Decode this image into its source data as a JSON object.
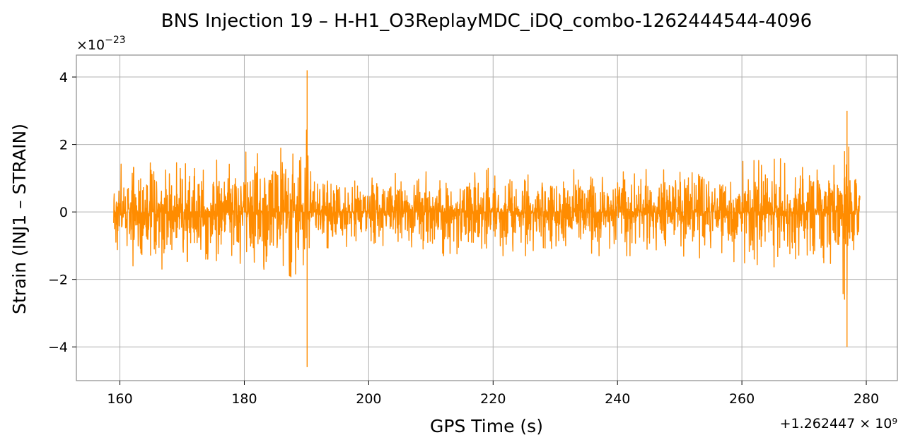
{
  "chart_data": {
    "type": "line",
    "title": "BNS Injection 19 – H-H1_O3ReplayMDC_iDQ_combo-1262444544-4096",
    "xlabel": "GPS Time (s)",
    "ylabel": "Strain (INJ1 – STRAIN)",
    "x_offset_text": "+1.262447 × 10⁹",
    "y_scale_text_base": "×10",
    "y_scale_text_exp": "−23",
    "xlim": [
      153,
      285
    ],
    "ylim": [
      -5,
      4.65
    ],
    "x_ticks": [
      160,
      180,
      200,
      220,
      240,
      260,
      280
    ],
    "x_tick_labels": [
      "160",
      "180",
      "200",
      "220",
      "240",
      "260",
      "280"
    ],
    "y_ticks": [
      4,
      2,
      0,
      -2,
      -4
    ],
    "y_tick_labels": [
      "4",
      "2",
      "0",
      "−2",
      "−4"
    ],
    "grid": true,
    "series": [
      {
        "color": "#ff8c00",
        "x_range": [
          159,
          279
        ],
        "envelope": [
          {
            "x": 159,
            "max": 1.3,
            "min": -1.0
          },
          {
            "x": 162,
            "max": 1.6,
            "min": -1.6
          },
          {
            "x": 167,
            "max": 1.5,
            "min": -1.7
          },
          {
            "x": 172,
            "max": 1.4,
            "min": -1.4
          },
          {
            "x": 175,
            "max": 1.5,
            "min": -1.4
          },
          {
            "x": 179.5,
            "max": 1.8,
            "min": -1.8
          },
          {
            "x": 183,
            "max": 1.7,
            "min": -1.7
          },
          {
            "x": 186,
            "max": 1.9,
            "min": -1.7
          },
          {
            "x": 188,
            "max": 2.1,
            "min": -2.0
          },
          {
            "x": 189.5,
            "max": 2.2,
            "min": -2.1
          },
          {
            "x": 190.1,
            "max": 4.2,
            "min": -4.6
          },
          {
            "x": 190.6,
            "max": 1.2,
            "min": -1.2
          },
          {
            "x": 195,
            "max": 1.1,
            "min": -1.0
          },
          {
            "x": 200,
            "max": 1.1,
            "min": -1.1
          },
          {
            "x": 210,
            "max": 1.2,
            "min": -1.3
          },
          {
            "x": 220,
            "max": 1.3,
            "min": -1.3
          },
          {
            "x": 230,
            "max": 1.3,
            "min": -1.3
          },
          {
            "x": 240,
            "max": 1.3,
            "min": -1.3
          },
          {
            "x": 250,
            "max": 1.4,
            "min": -1.3
          },
          {
            "x": 260,
            "max": 1.5,
            "min": -1.5
          },
          {
            "x": 268,
            "max": 1.6,
            "min": -1.7
          },
          {
            "x": 273,
            "max": 1.7,
            "min": -1.8
          },
          {
            "x": 276.5,
            "max": 1.8,
            "min": -2.6
          },
          {
            "x": 276.9,
            "max": 3.0,
            "min": -4.0
          },
          {
            "x": 277.3,
            "max": 1.5,
            "min": -1.5
          },
          {
            "x": 279,
            "max": 1.3,
            "min": -0.9
          }
        ]
      }
    ]
  }
}
